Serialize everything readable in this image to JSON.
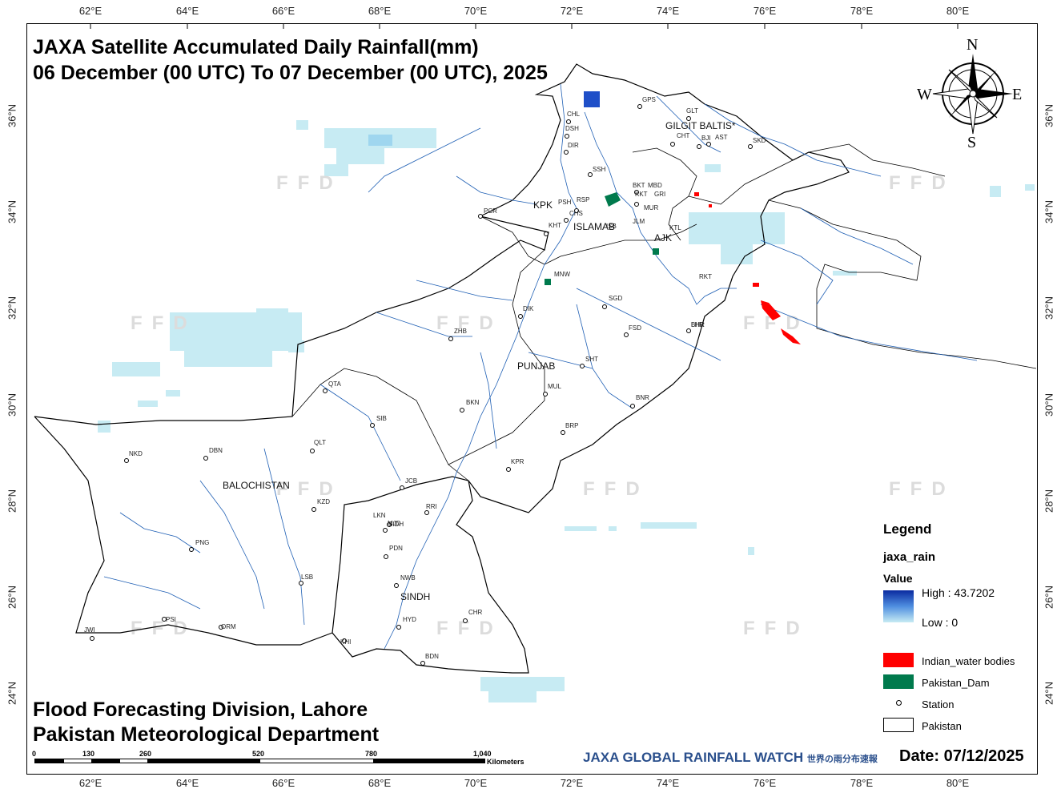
{
  "title": {
    "line1": "JAXA Satellite Accumulated Daily Rainfall(mm)",
    "line2": "06 December (00 UTC) To 07 December (00 UTC), 2025"
  },
  "footer": {
    "line1": "Flood Forecasting Division, Lahore",
    "line2": "Pakistan Meteorological Department"
  },
  "axes": {
    "lon_ticks": [
      "62°E",
      "64°E",
      "66°E",
      "68°E",
      "70°E",
      "72°E",
      "74°E",
      "76°E",
      "78°E",
      "80°E"
    ],
    "lat_ticks": [
      "36°N",
      "34°N",
      "32°N",
      "30°N",
      "28°N",
      "26°N",
      "24°N"
    ]
  },
  "compass": {
    "n": "N",
    "s": "S",
    "e": "E",
    "w": "W"
  },
  "legend": {
    "title": "Legend",
    "layer": "jaxa_rain",
    "value_label": "Value",
    "high": "High : 43.7202",
    "low": "Low : 0",
    "items": [
      {
        "label": "Indian_water bodies",
        "color": "#ff0000"
      },
      {
        "label": "Pakistan_Dam",
        "color": "#007a4d"
      },
      {
        "label": "Station"
      },
      {
        "label": "Pakistan"
      }
    ]
  },
  "scale_bar": {
    "ticks": [
      "0",
      "130",
      "260",
      "520",
      "780",
      "1,040"
    ],
    "unit": "Kilometers"
  },
  "source": {
    "text": "JAXA GLOBAL RAINFALL WATCH",
    "suffix": "世界の雨分布速報"
  },
  "date": "Date: 07/12/2025",
  "watermark": "FFD",
  "regions": [
    "GILGIT BALTIS*",
    "KPK",
    "ISLAMAB",
    "AJK",
    "PUNJAB",
    "BALOCHISTAN",
    "SINDH"
  ],
  "stations": [
    "CHL",
    "DSH",
    "DIR",
    "GPS",
    "GLT",
    "CHT",
    "BJI",
    "AST",
    "SKD",
    "SSH",
    "BKT",
    "MBD",
    "PSH",
    "RSP",
    "KKT",
    "GRI",
    "MUR",
    "PCR",
    "CHS",
    "KHT",
    "ISB",
    "JLM",
    "KTL",
    "RKT",
    "MNW",
    "SGD",
    "LHR",
    "BHR",
    "DIK",
    "ZHB",
    "FSD",
    "SHT",
    "QTA",
    "MUL",
    "BKN",
    "BNR",
    "SIB",
    "BRP",
    "NKD",
    "DBN",
    "QLT",
    "KPR",
    "JCB",
    "KZD",
    "RRI",
    "LKN",
    "MJD",
    "PDN",
    "PNG",
    "NWB",
    "LSB",
    "SIDH",
    "HYD",
    "CHR",
    "PSI",
    "JWI",
    "ORM",
    "KHI",
    "BDN"
  ],
  "colors": {
    "rain_low": "#c7ebf3",
    "rain_high": "#0a2aa0",
    "rivers": "#1f5fb4",
    "water_bodies": "#ff0000",
    "dam": "#007a4d"
  }
}
